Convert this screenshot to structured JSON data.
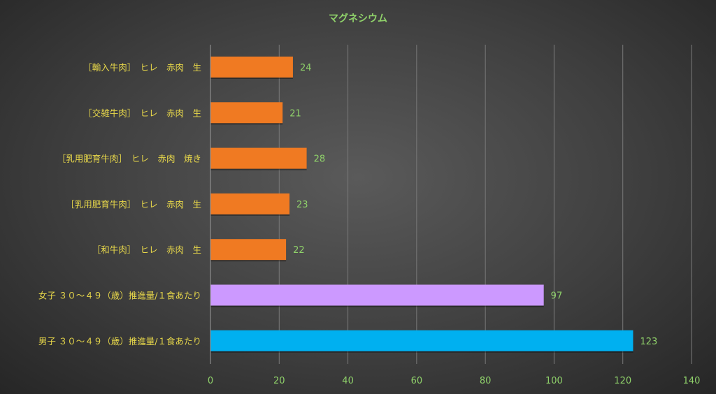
{
  "chart_data": {
    "type": "bar",
    "orientation": "horizontal",
    "title": "マグネシウム",
    "categories": [
      "［輸入牛肉］　ヒレ　赤肉　生",
      "［交雑牛肉］　ヒレ　赤肉　生",
      "［乳用肥育牛肉］　ヒレ　赤肉　焼き",
      "［乳用肥育牛肉］　ヒレ　赤肉　生",
      "［和牛肉］　ヒレ　赤肉　生",
      "女子 ３０～４９（歳）推進量/１食あたり",
      "男子 ３０～４９（歳）推進量/１食あたり"
    ],
    "values": [
      24,
      21,
      28,
      23,
      22,
      97,
      123
    ],
    "value_labels": [
      "24",
      "21",
      "28",
      "23",
      "22",
      "97",
      "123"
    ],
    "bar_colors": [
      "#f07a22",
      "#f07a22",
      "#f07a22",
      "#f07a22",
      "#f07a22",
      "#cc99ff",
      "#00b0f0"
    ],
    "xlim": [
      0,
      140
    ],
    "x_ticks": [
      0,
      20,
      40,
      60,
      80,
      100,
      120,
      140
    ],
    "x_tick_labels": [
      "0",
      "20",
      "40",
      "60",
      "80",
      "100",
      "120",
      "140"
    ],
    "grid": true,
    "legend": "none"
  },
  "colors": {
    "title": "#8fd16a",
    "category_text": "#e8d84a",
    "value_text": "#8fd16a",
    "tick_text": "#8fd16a",
    "gridline": "#7a7a7a",
    "axis": "#9a9a9a"
  }
}
